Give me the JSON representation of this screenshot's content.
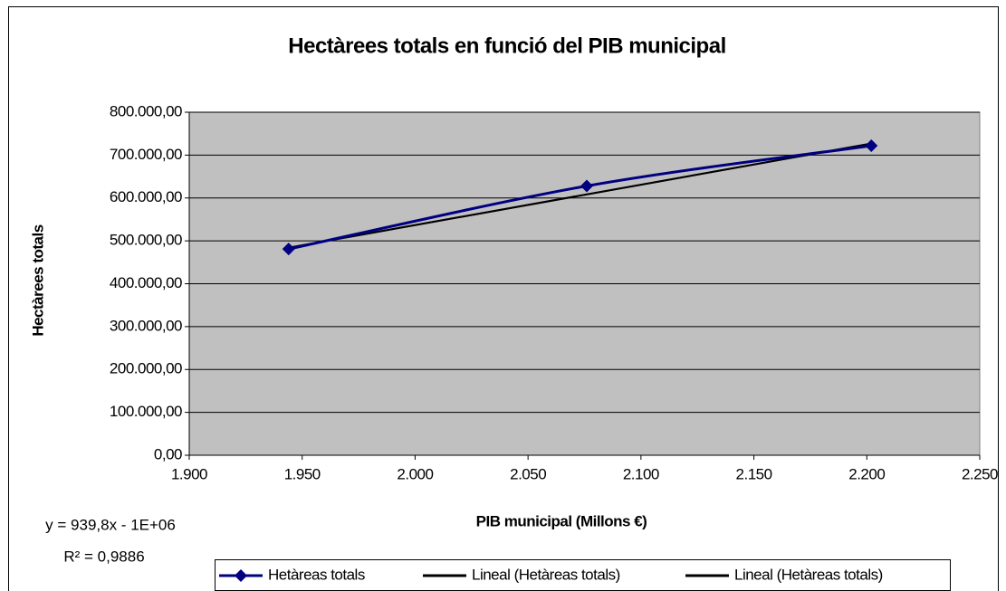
{
  "chart_data": {
    "type": "line",
    "title": "Hectàrees totals en funció del PIB municipal",
    "x_label": "PIB municipal (Millons €)",
    "y_label": "Hectàrees totals",
    "annotations": [
      "y = 939,8x - 1E+06",
      "R² = 0,9886"
    ],
    "series": [
      {
        "name": "Hetàreas totals",
        "color": "#000080",
        "marker": "diamond",
        "smooth": true,
        "x": [
          1944,
          2076,
          2202
        ],
        "values": [
          481000,
          628000,
          722000
        ]
      },
      {
        "name": "Lineal (Hetàreas totals)",
        "color": "#000000",
        "x": [
          1944,
          2202
        ],
        "values": [
          484000,
          727000
        ]
      },
      {
        "name": "Lineal (Hetàreas totals)",
        "color": "#000000",
        "x": [
          1944,
          2202
        ],
        "values": [
          484000,
          727000
        ]
      }
    ],
    "xlim": [
      1900,
      2250
    ],
    "xticks": [
      {
        "value": 1900,
        "label": "1.900"
      },
      {
        "value": 1950,
        "label": "1.950"
      },
      {
        "value": 2000,
        "label": "2.000"
      },
      {
        "value": 2050,
        "label": "2.050"
      },
      {
        "value": 2100,
        "label": "2.100"
      },
      {
        "value": 2150,
        "label": "2.150"
      },
      {
        "value": 2200,
        "label": "2.200"
      },
      {
        "value": 2250,
        "label": "2.250"
      }
    ],
    "ylim": [
      0,
      800000
    ],
    "yticks": [
      {
        "value": 0,
        "label": "0,00"
      },
      {
        "value": 100000,
        "label": "100.000,00"
      },
      {
        "value": 200000,
        "label": "200.000,00"
      },
      {
        "value": 300000,
        "label": "300.000,00"
      },
      {
        "value": 400000,
        "label": "400.000,00"
      },
      {
        "value": 500000,
        "label": "500.000,00"
      },
      {
        "value": 600000,
        "label": "600.000,00"
      },
      {
        "value": 700000,
        "label": "700.000,00"
      },
      {
        "value": 800000,
        "label": "800.000,00"
      }
    ],
    "grid": true,
    "plot_background": "#c0c0c0",
    "legend": "bottom"
  }
}
